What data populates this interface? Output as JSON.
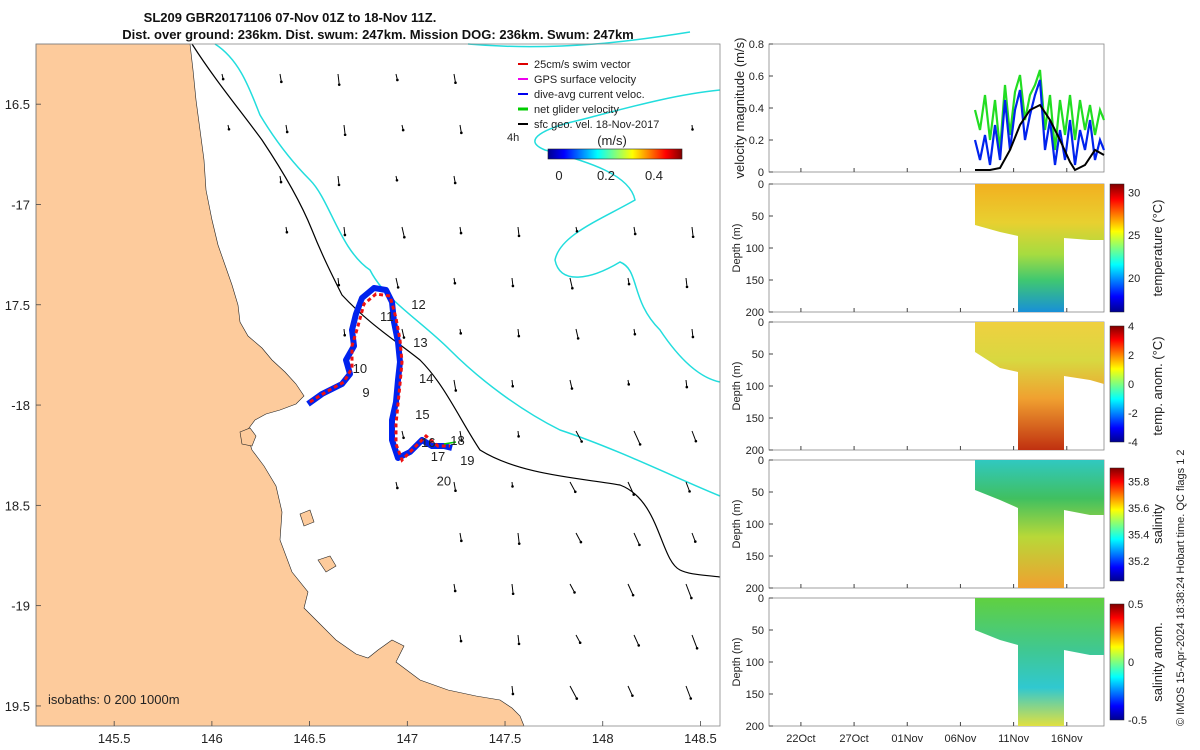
{
  "chart_data": {
    "type": "map_with_timeseries",
    "title_line1": "SL209 GBR20171106 07-Nov 01Z to 18-Nov 11Z.",
    "title_line2": "Dist. over ground: 236km. Dist. swum: 247km. Mission DOG: 236km. Swum: 247km",
    "map": {
      "lon_range": [
        145.1,
        148.6
      ],
      "lat_range": [
        -19.6,
        -16.2
      ],
      "x_ticks": [
        145.5,
        146,
        146.5,
        147,
        147.5,
        148,
        148.5
      ],
      "x_tick_labels": [
        "145.5",
        "146",
        "146.5",
        "147",
        "147.5",
        "148",
        "148.5"
      ],
      "y_ticks": [
        -16.5,
        -17,
        -17.5,
        -18,
        -18.5,
        -19,
        -19.5
      ],
      "y_tick_labels": [
        "16.5",
        "-17",
        "17.5",
        "-18",
        "18.5",
        "-19",
        "19.5"
      ],
      "legend": [
        {
          "label": "25cm/s swim vector",
          "color": "#dd0000"
        },
        {
          "label": "GPS surface velocity",
          "color": "#ee00ee"
        },
        {
          "label": "dive-avg current veloc.",
          "color": "#0000ee"
        },
        {
          "label": "net glider velocity",
          "color": "#00cc00"
        },
        {
          "label": "sfc geo. vel. 18-Nov-2017",
          "color": "#000000"
        }
      ],
      "legend_side_label": "4h",
      "colorbar": {
        "label": "(m/s)",
        "ticks": [
          "0",
          "0.2",
          "0.4"
        ],
        "range": [
          0,
          0.5
        ]
      },
      "isobaths_label": "isobaths: 0   200  1000m",
      "day_labels": [
        {
          "text": "9",
          "lon": 146.77,
          "lat": -17.96
        },
        {
          "text": "10",
          "lon": 146.72,
          "lat": -17.84
        },
        {
          "text": "11",
          "lon": 146.86,
          "lat": -17.58
        },
        {
          "text": "12",
          "lon": 147.02,
          "lat": -17.52
        },
        {
          "text": "13",
          "lon": 147.03,
          "lat": -17.71
        },
        {
          "text": "14",
          "lon": 147.06,
          "lat": -17.89
        },
        {
          "text": "15",
          "lon": 147.04,
          "lat": -18.07
        },
        {
          "text": "16",
          "lon": 147.07,
          "lat": -18.21
        },
        {
          "text": "17",
          "lon": 147.12,
          "lat": -18.28
        },
        {
          "text": "18",
          "lon": 147.22,
          "lat": -18.2
        },
        {
          "text": "19",
          "lon": 147.27,
          "lat": -18.3
        },
        {
          "text": "20",
          "lon": 147.15,
          "lat": -18.4
        }
      ]
    },
    "time_axis": {
      "labels": [
        "22Oct",
        "27Oct",
        "01Nov",
        "06Nov",
        "11Nov",
        "16Nov"
      ],
      "days": [
        0,
        5,
        10,
        15,
        20,
        25
      ],
      "range_days": [
        -3,
        28.5
      ]
    },
    "velocity_panel": {
      "ylabel": "velocity magnitude (m/s)",
      "ylim": [
        0,
        0.8
      ],
      "y_ticks": [
        "0",
        "0.2",
        "0.4",
        "0.6",
        "0.8"
      ]
    },
    "section_panels": [
      {
        "ylabel": "Depth (m)",
        "cbar_label": "temperature (°C)",
        "cbar_ticks": [
          "20",
          "25",
          "30"
        ],
        "cbar_range": [
          16,
          31
        ]
      },
      {
        "ylabel": "Depth (m)",
        "cbar_label": "temp. anom. (°C)",
        "cbar_ticks": [
          "-4",
          "-2",
          "0",
          "2",
          "4"
        ],
        "cbar_range": [
          -4,
          4
        ]
      },
      {
        "ylabel": "Depth (m)",
        "cbar_label": "salinity",
        "cbar_ticks": [
          "35.2",
          "35.4",
          "35.6",
          "35.8"
        ],
        "cbar_range": [
          35.05,
          35.9
        ]
      },
      {
        "ylabel": "Depth (m)",
        "cbar_label": "salinity anom.",
        "cbar_ticks": [
          "-0.5",
          "0",
          "0.5"
        ],
        "cbar_range": [
          -0.5,
          0.5
        ]
      }
    ],
    "depth_ticks": [
      "0",
      "50",
      "100",
      "150",
      "200"
    ],
    "footer": "© IMOS 15-Apr-2024 18:38:24 Hobart time. QC flags 1  2"
  }
}
